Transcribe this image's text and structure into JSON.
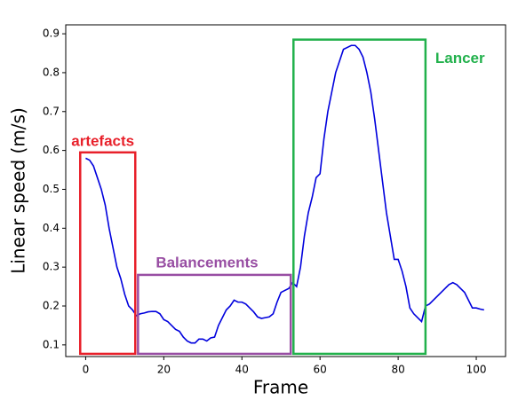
{
  "chart_data": {
    "type": "line",
    "xlabel": "Frame",
    "ylabel": "Linear speed (m/s)",
    "x": [
      0,
      1,
      2,
      3,
      4,
      5,
      6,
      7,
      8,
      9,
      10,
      11,
      12,
      13,
      14,
      15,
      16,
      17,
      18,
      19,
      20,
      21,
      22,
      23,
      24,
      25,
      26,
      27,
      28,
      29,
      30,
      31,
      32,
      33,
      34,
      35,
      36,
      37,
      38,
      39,
      40,
      41,
      42,
      43,
      44,
      45,
      46,
      47,
      48,
      49,
      50,
      51,
      52,
      53,
      54,
      55,
      56,
      57,
      58,
      59,
      60,
      61,
      62,
      63,
      64,
      65,
      66,
      67,
      68,
      69,
      70,
      71,
      72,
      73,
      74,
      75,
      76,
      77,
      78,
      79,
      80,
      81,
      82,
      83,
      84,
      85,
      86,
      87,
      88,
      89,
      90,
      91,
      92,
      93,
      94,
      95,
      96,
      97,
      98,
      99,
      100,
      101,
      102
    ],
    "series": [
      {
        "color": "#0000dd",
        "values": [
          0.58,
          0.575,
          0.56,
          0.53,
          0.5,
          0.46,
          0.4,
          0.35,
          0.3,
          0.27,
          0.23,
          0.2,
          0.19,
          0.175,
          0.18,
          0.182,
          0.185,
          0.186,
          0.186,
          0.18,
          0.165,
          0.16,
          0.15,
          0.14,
          0.135,
          0.12,
          0.11,
          0.105,
          0.105,
          0.115,
          0.115,
          0.11,
          0.118,
          0.12,
          0.15,
          0.17,
          0.19,
          0.2,
          0.215,
          0.21,
          0.21,
          0.205,
          0.195,
          0.185,
          0.172,
          0.168,
          0.17,
          0.172,
          0.18,
          0.21,
          0.235,
          0.24,
          0.245,
          0.26,
          0.25,
          0.3,
          0.38,
          0.44,
          0.48,
          0.53,
          0.54,
          0.63,
          0.7,
          0.75,
          0.8,
          0.83,
          0.86,
          0.865,
          0.87,
          0.87,
          0.86,
          0.84,
          0.8,
          0.75,
          0.68,
          0.6,
          0.52,
          0.44,
          0.38,
          0.32,
          0.32,
          0.29,
          0.25,
          0.195,
          0.18,
          0.17,
          0.16,
          0.2,
          0.205,
          0.215,
          0.225,
          0.235,
          0.245,
          0.255,
          0.26,
          0.255,
          0.245,
          0.235,
          0.215,
          0.195,
          0.195,
          0.192,
          0.19
        ]
      }
    ],
    "xlim": [
      -5.1,
      107.5
    ],
    "ylim": [
      0.07,
      0.923
    ],
    "xticks": [
      0,
      20,
      40,
      60,
      80,
      100
    ],
    "yticks": [
      0.1,
      0.2,
      0.3,
      0.4,
      0.5,
      0.6,
      0.7,
      0.8,
      0.9
    ],
    "annotations": [
      {
        "text": "artefacts",
        "color": "#e8202a",
        "x0": -1.4,
        "x1": 12.7,
        "y0": 0.077,
        "y1": 0.595
      },
      {
        "text": "Balancements",
        "color": "#984ea3",
        "x0": 13.4,
        "x1": 52.5,
        "y0": 0.077,
        "y1": 0.28
      },
      {
        "text": "Lancer",
        "color": "#22b14c",
        "x0": 53.2,
        "x1": 87,
        "y0": 0.077,
        "y1": 0.885
      }
    ]
  }
}
